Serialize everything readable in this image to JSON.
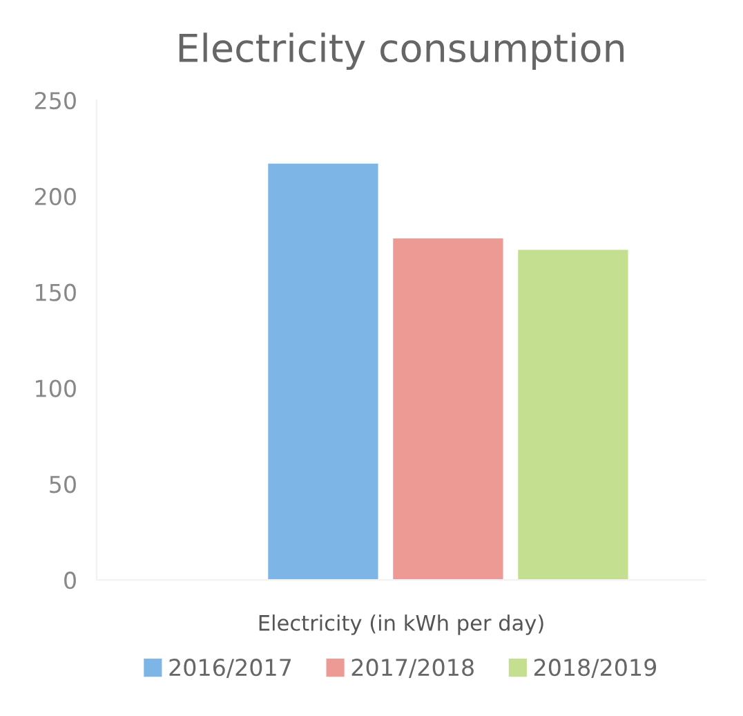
{
  "chart_data": {
    "type": "bar",
    "title": "Electricity consumption",
    "xlabel": "Electricity (in kWh per day)",
    "categories": [
      null
    ],
    "series": [
      {
        "name": "2016/2017",
        "color": "#7cb5e6",
        "values": [
          217
        ]
      },
      {
        "name": "2017/2018",
        "color": "#ee9a94",
        "values": [
          178
        ]
      },
      {
        "name": "2018/2019",
        "color": "#c3df8f",
        "values": [
          172
        ]
      }
    ],
    "ylim": [
      0,
      250
    ],
    "yticks": [
      0,
      50,
      100,
      150,
      200,
      250
    ],
    "grid": false,
    "legend": "bottom"
  }
}
